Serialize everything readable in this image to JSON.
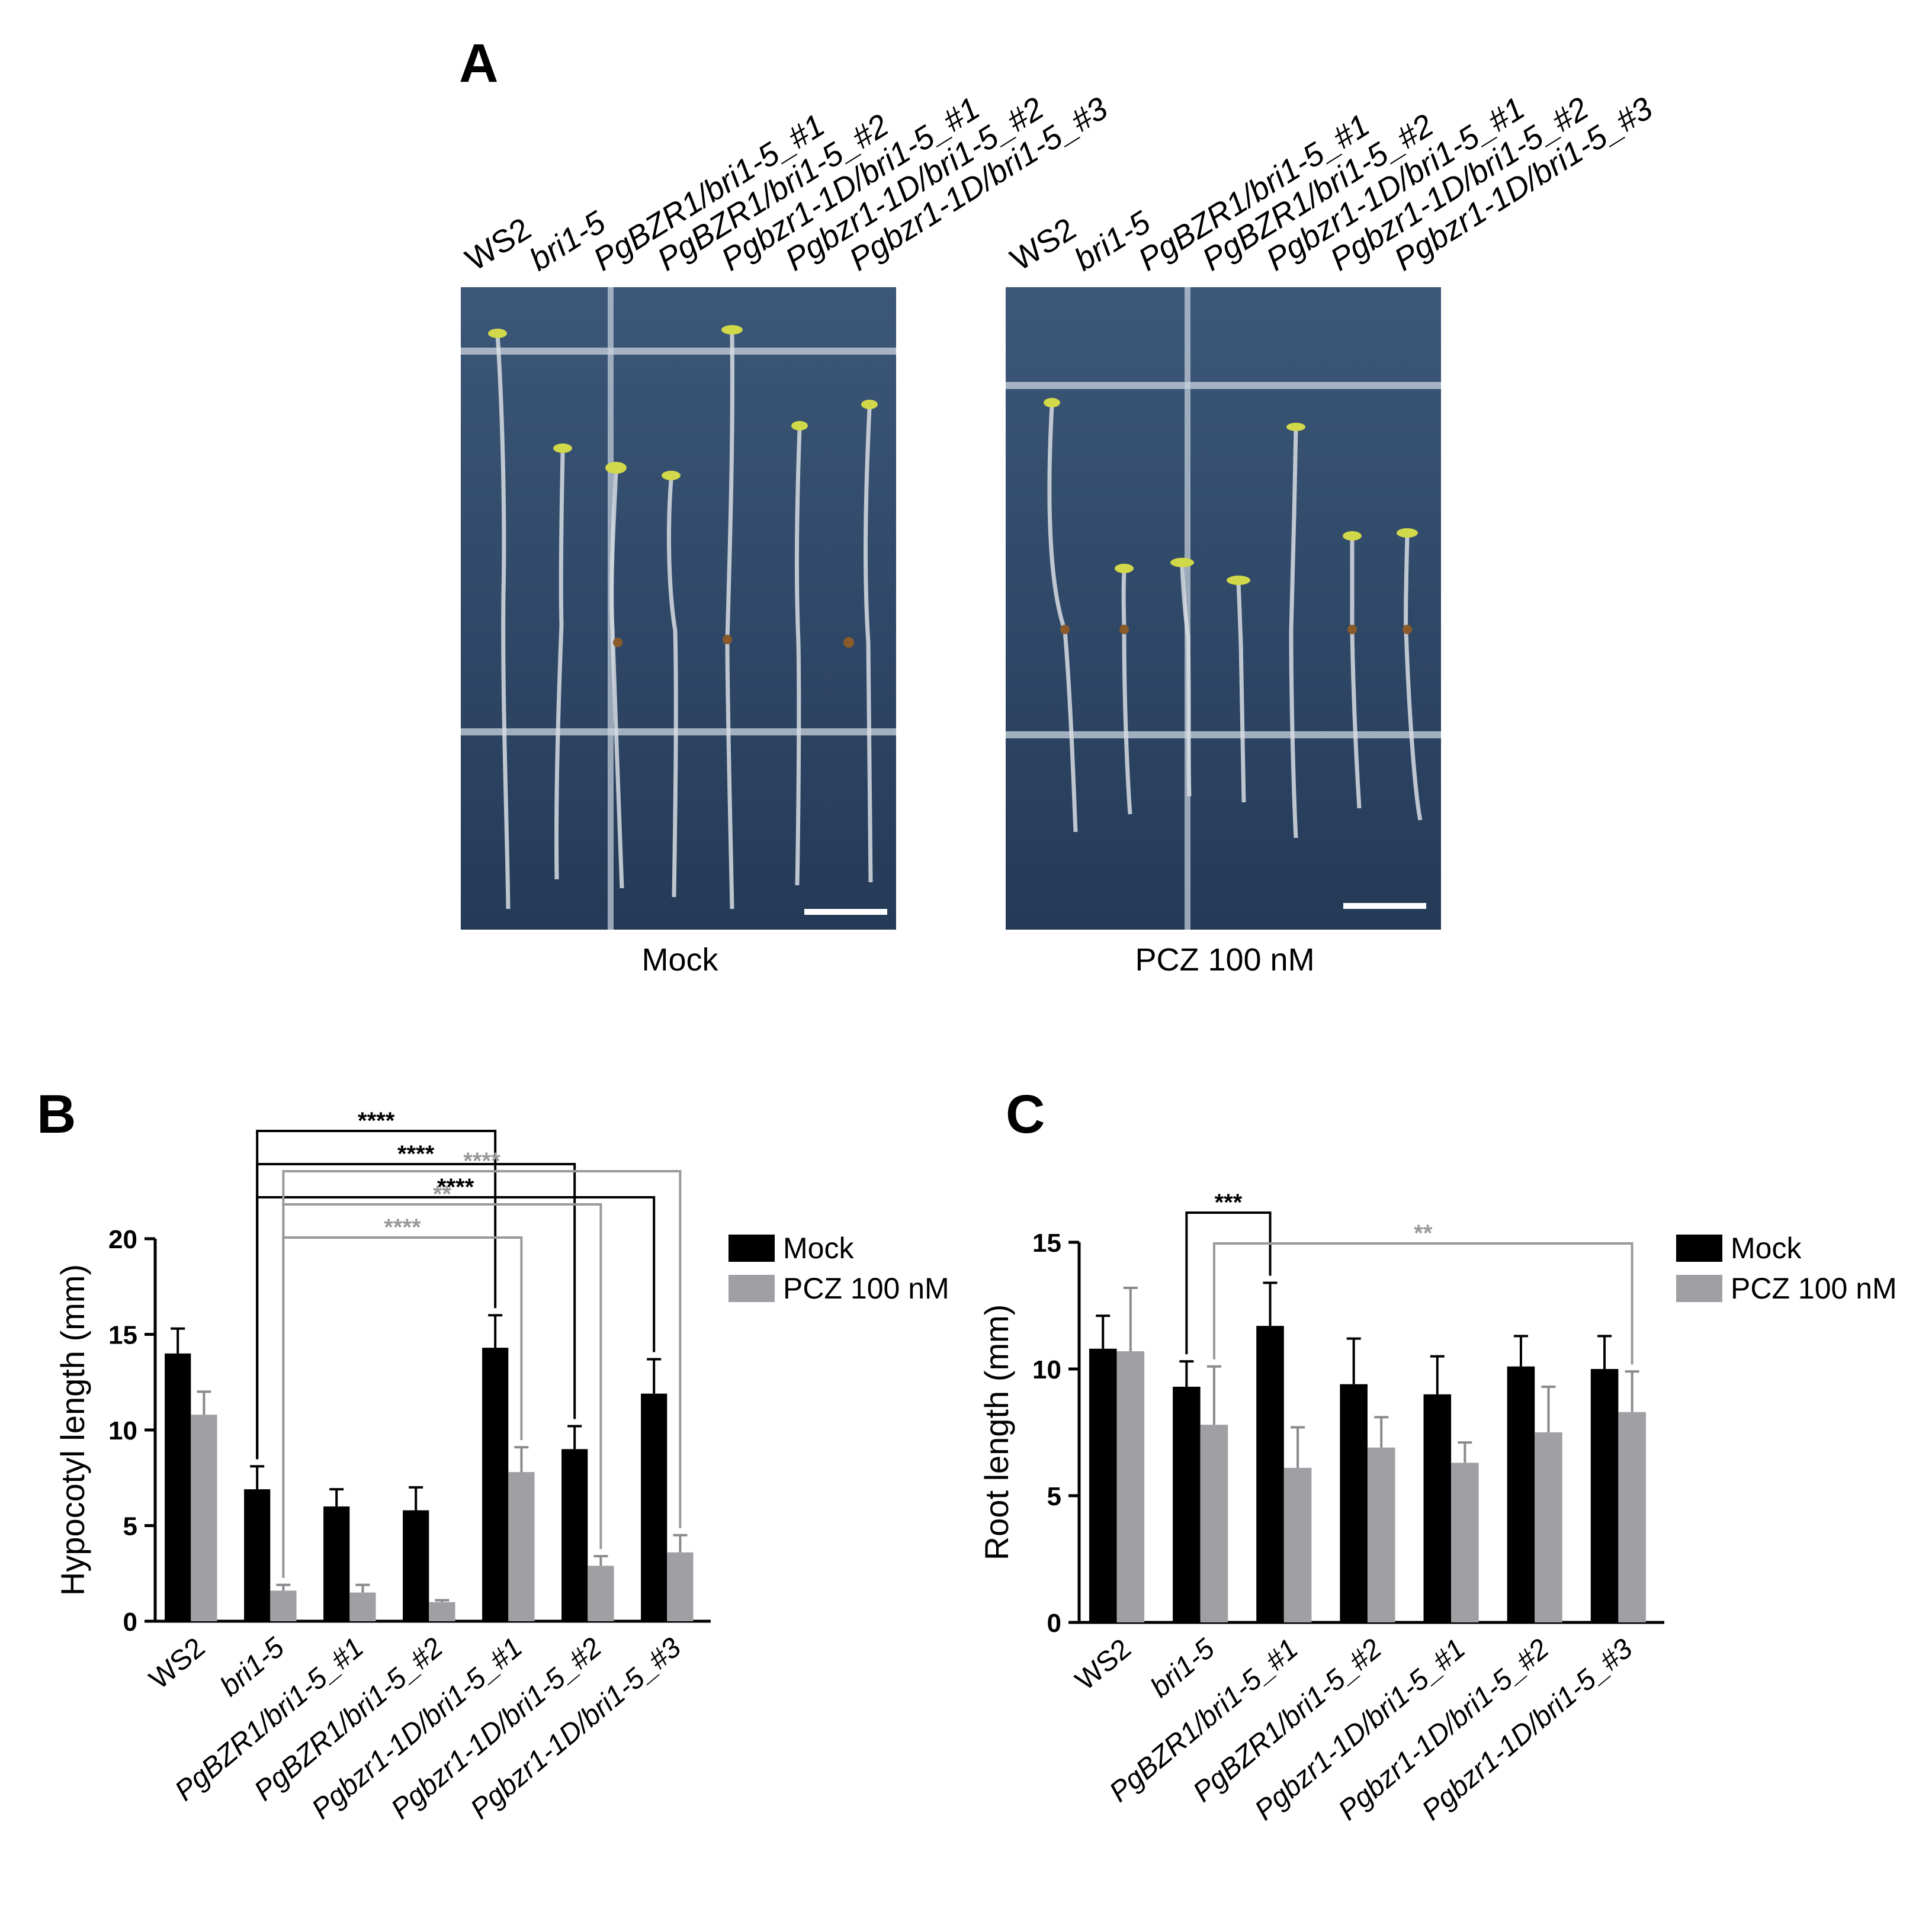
{
  "panel_a": {
    "letter": "A",
    "genotypes": [
      "WS2",
      "bri1-5",
      "PgBZR1/bri1-5_#1",
      "PgBZR1/bri1-5_#2",
      "Pgbzr1-1D/bri1-5_#1",
      "Pgbzr1-1D/bri1-5_#2",
      "Pgbzr1-1D/bri1-5_#3"
    ],
    "conditions": [
      "Mock",
      "PCZ 100 nM"
    ]
  },
  "chart_data": [
    {
      "panel": "B",
      "type": "bar",
      "ylabel": "Hypocotyl length (mm)",
      "ylim": [
        0,
        20
      ],
      "yticks": [
        0,
        5,
        10,
        15,
        20
      ],
      "categories": [
        "WS2",
        "bri1-5",
        "PgBZR1/bri1-5_#1",
        "PgBZR1/bri1-5_#2",
        "Pgbzr1-1D/bri1-5_#1",
        "Pgbzr1-1D/bri1-5_#2",
        "Pgbzr1-1D/bri1-5_#3"
      ],
      "series": [
        {
          "name": "Mock",
          "color": "#000000",
          "values": [
            14.0,
            6.9,
            6.0,
            5.8,
            14.3,
            9.0,
            11.9
          ],
          "errors": [
            1.3,
            1.2,
            0.9,
            1.2,
            1.7,
            1.2,
            1.8
          ]
        },
        {
          "name": "PCZ 100 nM",
          "color": "#a0a0a4",
          "values": [
            10.8,
            1.6,
            1.5,
            1.0,
            7.8,
            2.9,
            3.6
          ],
          "errors": [
            1.2,
            0.3,
            0.4,
            0.1,
            1.3,
            0.5,
            0.9
          ]
        }
      ],
      "legend": "right",
      "significance": [
        {
          "from": 1,
          "from_series": 0,
          "to": 4,
          "to_series": 0,
          "label": "****",
          "color": "#000000"
        },
        {
          "from": 1,
          "from_series": 0,
          "to": 5,
          "to_series": 0,
          "label": "****",
          "color": "#000000"
        },
        {
          "from": 1,
          "from_series": 0,
          "to": 6,
          "to_series": 0,
          "label": "****",
          "color": "#000000"
        },
        {
          "from": 1,
          "from_series": 1,
          "to": 4,
          "to_series": 1,
          "label": "****",
          "color": "#9a9a9a"
        },
        {
          "from": 1,
          "from_series": 1,
          "to": 5,
          "to_series": 1,
          "label": "**",
          "color": "#9a9a9a"
        },
        {
          "from": 1,
          "from_series": 1,
          "to": 6,
          "to_series": 1,
          "label": "****",
          "color": "#9a9a9a"
        }
      ]
    },
    {
      "panel": "C",
      "type": "bar",
      "ylabel": "Root length (mm)",
      "ylim": [
        0,
        15
      ],
      "yticks": [
        0,
        5,
        10,
        15
      ],
      "categories": [
        "WS2",
        "bri1-5",
        "PgBZR1/bri1-5_#1",
        "PgBZR1/bri1-5_#2",
        "Pgbzr1-1D/bri1-5_#1",
        "Pgbzr1-1D/bri1-5_#2",
        "Pgbzr1-1D/bri1-5_#3"
      ],
      "series": [
        {
          "name": "Mock",
          "color": "#000000",
          "values": [
            10.8,
            9.3,
            11.7,
            9.4,
            9.0,
            10.1,
            10.0
          ],
          "errors": [
            1.3,
            1.0,
            1.7,
            1.8,
            1.5,
            1.2,
            1.3
          ]
        },
        {
          "name": "PCZ 100 nM",
          "color": "#a0a0a4",
          "values": [
            10.7,
            7.8,
            6.1,
            6.9,
            6.3,
            7.5,
            8.3
          ],
          "errors": [
            2.5,
            2.3,
            1.6,
            1.2,
            0.8,
            1.8,
            1.6
          ]
        }
      ],
      "legend": "right",
      "significance": [
        {
          "from": 1,
          "from_series": 0,
          "to": 2,
          "to_series": 0,
          "label": "***",
          "color": "#000000"
        },
        {
          "from": 1,
          "from_series": 1,
          "to": 6,
          "to_series": 1,
          "label": "**",
          "color": "#9a9a9a"
        }
      ]
    }
  ]
}
